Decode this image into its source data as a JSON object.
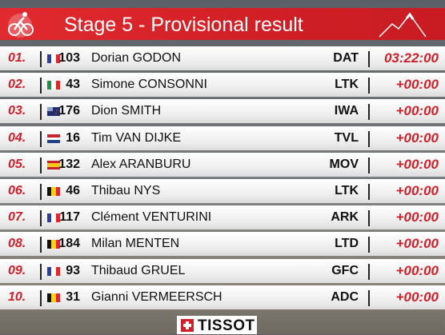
{
  "header": {
    "title": "Stage 5 - Provisional result"
  },
  "table": {
    "rows": [
      [
        "01.",
        "103",
        "Dorian GODON",
        "DAT",
        "03:22:00"
      ],
      [
        "02.",
        "43",
        "Simone CONSONNI",
        "LTK",
        "+00:00"
      ],
      [
        "03.",
        "176",
        "Dion SMITH",
        "IWA",
        "+00:00"
      ],
      [
        "04.",
        "16",
        "Tim VAN DIJKE",
        "TVL",
        "+00:00"
      ],
      [
        "05.",
        "132",
        "Alex ARANBURU",
        "MOV",
        "+00:00"
      ],
      [
        "06.",
        "46",
        "Thibau NYS",
        "LTK",
        "+00:00"
      ],
      [
        "07.",
        "117",
        "Clément VENTURINI",
        "ARK",
        "+00:00"
      ],
      [
        "08.",
        "184",
        "Milan MENTEN",
        "LTD",
        "+00:00"
      ],
      [
        "09.",
        "93",
        "Thibaud GRUEL",
        "GFC",
        "+00:00"
      ],
      [
        "10.",
        "31",
        "Gianni VERMEERSCH",
        "ADC",
        "+00:00"
      ]
    ]
  },
  "footer": {
    "brand": "TISSOT"
  }
}
